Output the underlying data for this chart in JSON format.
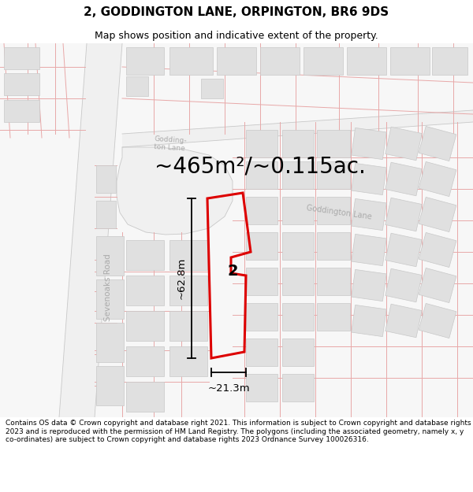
{
  "title": "2, GODDINGTON LANE, ORPINGTON, BR6 9DS",
  "subtitle": "Map shows position and indicative extent of the property.",
  "area_text": "~465m²/~0.115ac.",
  "width_label": "~21.3m",
  "height_label": "~62.8m",
  "property_number": "2",
  "road_label_1": "Goddington Lane",
  "road_label_2": "Godding-\nton Lane",
  "sevenoaks_label": "Sevenoaks Road",
  "footer": "Contains OS data © Crown copyright and database right 2021. This information is subject to Crown copyright and database rights 2023 and is reproduced with the permission of HM Land Registry. The polygons (including the associated geometry, namely x, y co-ordinates) are subject to Crown copyright and database rights 2023 Ordnance Survey 100026316.",
  "bg_color": "#ffffff",
  "map_bg": "#f7f7f7",
  "road_fill": "#ebebeb",
  "prop_red": "#dd0000",
  "prop_line_lw": 2.0,
  "bld_fill": "#e0e0e0",
  "bld_edge": "#c8c8c8",
  "pink_line": "#e8a8a8",
  "gray_line": "#c8c8c8",
  "road_label_color": "#aaaaaa",
  "sevenoaks_color": "#aaaaaa",
  "dim_color": "#000000",
  "area_fontsize": 20,
  "title_fontsize": 11,
  "subtitle_fontsize": 9,
  "footer_fontsize": 6.5
}
